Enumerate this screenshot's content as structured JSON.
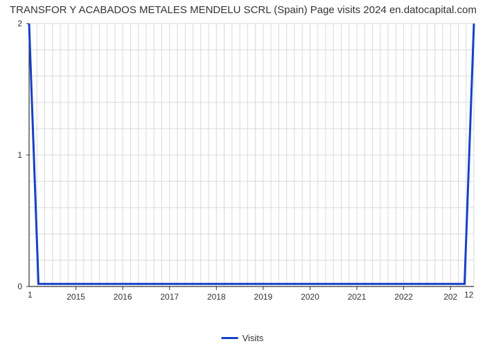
{
  "chart": {
    "type": "line",
    "title": "TRANSFOR Y ACABADOS METALES MENDELU SCRL (Spain) Page visits 2024 en.datocapital.com",
    "title_fontsize": 15,
    "background_color": "#ffffff",
    "grid_color": "#d9d9d9",
    "axis_color": "#333333",
    "line_color": "#1541c7",
    "line_width": 3,
    "legend_label": "Visits",
    "legend_swatch_color": "#1541c7",
    "x": {
      "ticks": [
        "2015",
        "2016",
        "2017",
        "2018",
        "2019",
        "2020",
        "2021",
        "2022",
        "202"
      ],
      "range_start": 2014,
      "range_end": 2023.5,
      "label_fontsize": 12
    },
    "y": {
      "ticks": [
        "0",
        "1",
        "2"
      ],
      "range_min": 0,
      "range_max": 2,
      "label_fontsize": 12
    },
    "secondary": {
      "bottom_left": "1",
      "bottom_right": "12"
    },
    "grid": {
      "vlines_per_major": 6,
      "hlines_per_major": 5
    },
    "series": {
      "x": [
        2014,
        2014.2,
        2023.3,
        2023.5
      ],
      "y": [
        2,
        0.02,
        0.02,
        2
      ]
    }
  }
}
